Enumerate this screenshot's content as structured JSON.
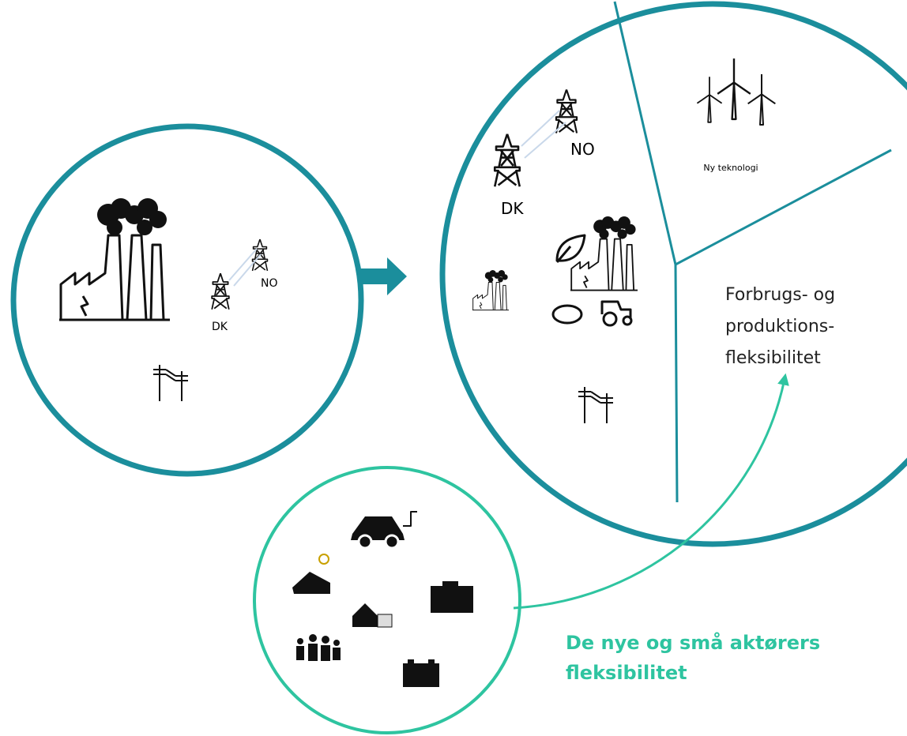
{
  "left_circle": {
    "labels": {
      "dk": "DK",
      "no": "NO"
    }
  },
  "right_circle": {
    "labels": {
      "dk": "DK",
      "no": "NO"
    },
    "segments": [
      {
        "label": "Ny teknologi"
      },
      {
        "label_lines": [
          "Forbrugs- og",
          "produktions-",
          "fleksibilitet"
        ]
      }
    ]
  },
  "small_circle": {
    "caption_lines": [
      "De nye og små aktørers",
      "fleksibilitet"
    ]
  }
}
